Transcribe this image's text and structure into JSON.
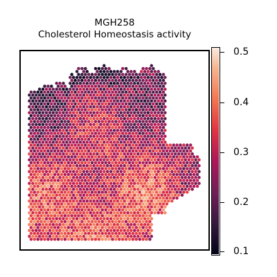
{
  "chart_data": {
    "type": "heatmap",
    "subtype": "spatial hexagonal spot map",
    "title_line1": "MGH258",
    "title_line2": "Cholesterol Homeostasis activity",
    "xlabel": "",
    "ylabel": "",
    "x_ticks": [],
    "y_ticks": [],
    "colorbar": {
      "colormap": "rocket",
      "vmin": 0.1,
      "vmax": 0.51,
      "tick_labels": [
        "0.5",
        "0.4",
        "0.3",
        "0.2",
        "0.1"
      ],
      "tick_values": [
        0.5,
        0.4,
        0.3,
        0.2,
        0.1
      ]
    },
    "value_range_observed": [
      0.12,
      0.51
    ],
    "trend_note": "lower activity (dark) concentrated along the top edge, higher activity (light) toward the bottom and left",
    "grid": false,
    "legend": "colorbar-right"
  }
}
